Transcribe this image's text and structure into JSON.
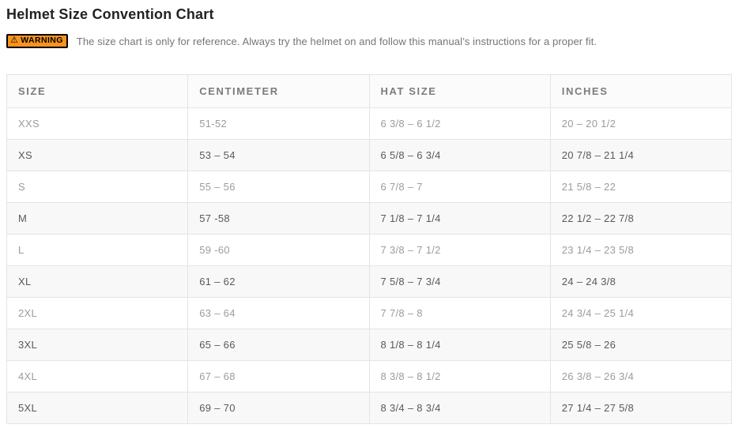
{
  "page": {
    "title": "Helmet Size Convention Chart"
  },
  "warning": {
    "icon_glyph": "⚠",
    "badge_label": "WARNING",
    "text": "The size chart is only for reference. Always try the helmet on and follow this manual’s instructions for a proper fit."
  },
  "colors": {
    "warning_badge_bg": "#F7941E",
    "warning_badge_border": "#000000",
    "header_text": "#7C7C7C",
    "row_light_text": "#9C9C9C",
    "row_dark_text": "#595959",
    "row_stripe_bg": "#F8F8F8",
    "grid_border": "#E4E4E4"
  },
  "table": {
    "columns": [
      "SIZE",
      "CENTIMETER",
      "HAT SIZE",
      "INCHES"
    ],
    "rows": [
      [
        "XXS",
        "51-52",
        "6 3/8 – 6 1/2",
        "20 – 20 1/2"
      ],
      [
        "XS",
        "53 – 54",
        "6 5/8 – 6 3/4",
        "20 7/8 – 21 1/4"
      ],
      [
        "S",
        "55 – 56",
        "6 7/8 – 7",
        "21 5/8 – 22"
      ],
      [
        "M",
        "57 -58",
        "7 1/8 – 7 1/4",
        "22 1/2 – 22 7/8"
      ],
      [
        "L",
        "59 -60",
        "7 3/8 – 7 1/2",
        "23 1/4 – 23 5/8"
      ],
      [
        "XL",
        "61 – 62",
        "7 5/8 – 7 3/4",
        "24 – 24 3/8"
      ],
      [
        "2XL",
        "63 – 64",
        "7 7/8 – 8",
        "24 3/4 – 25 1/4"
      ],
      [
        "3XL",
        "65 – 66",
        "8 1/8 – 8 1/4",
        "25 5/8 – 26"
      ],
      [
        "4XL",
        "67 – 68",
        "8 3/8 – 8 1/2",
        "26 3/8 – 26 3/4"
      ],
      [
        "5XL",
        "69 – 70",
        "8 3/4 – 8 3/4",
        "27 1/4 – 27 5/8"
      ]
    ]
  }
}
